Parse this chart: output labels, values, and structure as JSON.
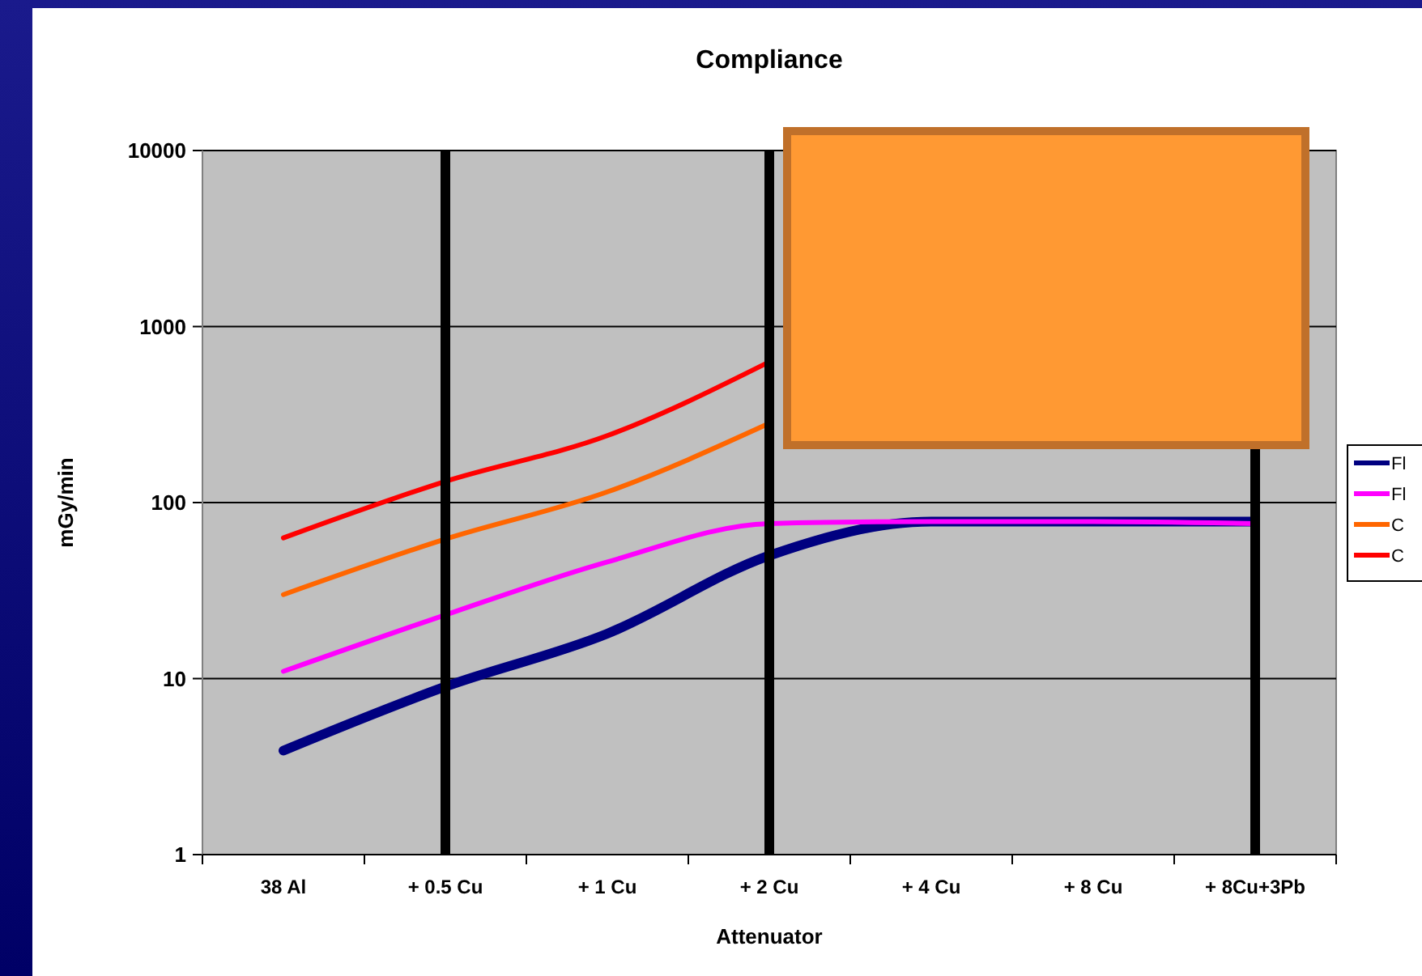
{
  "chart_data": {
    "type": "line",
    "title": "Compliance",
    "xlabel": "Attenuator",
    "ylabel": "mGy/min",
    "categories": [
      "38 Al",
      "+ 0.5 Cu",
      "+ 1 Cu",
      "+ 2 Cu",
      "+ 4 Cu",
      "+ 8 Cu",
      "+ 8Cu+3Pb"
    ],
    "series": [
      {
        "name": "Fl",
        "color": "#000080",
        "values": [
          3.9,
          9,
          18,
          50,
          78,
          78,
          78
        ]
      },
      {
        "name": "Fl",
        "color": "#ff00ff",
        "values": [
          11,
          23,
          46,
          76,
          78,
          78,
          76
        ]
      },
      {
        "name": "C",
        "color": "#ff6600",
        "values": [
          30,
          62,
          115,
          282,
          null,
          null,
          null
        ]
      },
      {
        "name": "C",
        "color": "#ff0000",
        "values": [
          63,
          132,
          240,
          630,
          null,
          null,
          null
        ]
      }
    ],
    "log": "y",
    "ylim": [
      1,
      10000
    ],
    "yticks": [
      1,
      10,
      100,
      1000,
      10000
    ],
    "grid": "y",
    "legend": "right",
    "line_style": "solid",
    "ref_lines": [
      {
        "axis": "x",
        "value": "+ 0.5 Cu",
        "color": "#000000"
      },
      {
        "axis": "x",
        "value": "+ 2 Cu",
        "color": "#000000"
      },
      {
        "axis": "x",
        "value": "+ 8Cu+3Pb",
        "color": "#000000"
      }
    ]
  }
}
